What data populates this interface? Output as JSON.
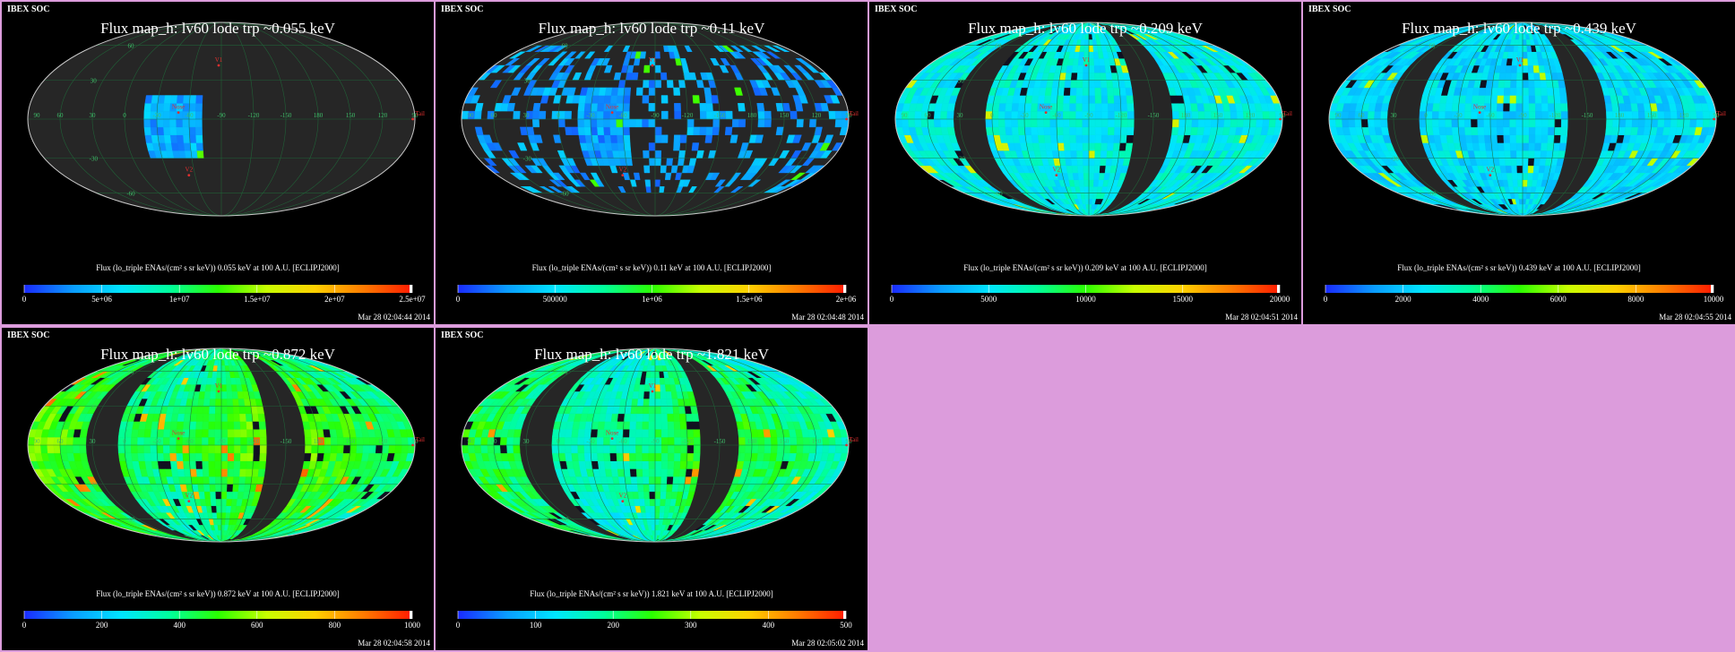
{
  "header_label": "IBEX SOC",
  "map_labels": {
    "lon": [
      "90",
      "60",
      "30",
      "0",
      "-30",
      "-60",
      "-90",
      "-120",
      "-150",
      "180",
      "150",
      "120",
      "90"
    ],
    "lat": [
      "60",
      "30",
      "-30",
      "-60"
    ],
    "voyager1": "V1",
    "voyager2": "V2",
    "nose": "Nose",
    "tail": "Tail"
  },
  "colors": {
    "page_bg": "#dc9cdc",
    "panel_bg": "#000000",
    "map_bg": "#262626",
    "grid": "#1f6b3a",
    "outline": "#c8c8c8",
    "marker": "#e03030",
    "colorbar": [
      "#1a2aff",
      "#0a9cff",
      "#00e4ff",
      "#00ff9c",
      "#2aff00",
      "#c8ff00",
      "#ffd000",
      "#ff7a00",
      "#ff1a00"
    ]
  },
  "chart_data": [
    {
      "type": "heatmap",
      "title": "Flux   map_h: lv60 lode trp ~0.055 keV",
      "energy_keV": 0.055,
      "colorbar_label": "Flux (lo_triple ENAs/(cm² s sr keV))  0.055 keV at 100 A.U. [ECLIPJ2000]",
      "colorbar_ticks": [
        "0",
        "5e+06",
        "1e+07",
        "1.5e+07",
        "2e+07",
        "2.5e+07"
      ],
      "colorbar_range": [
        0,
        25000000
      ],
      "timestamp": "Mar 28 02:04:44 2014",
      "coverage": "central sliver only (lon -70 to -20)"
    },
    {
      "type": "heatmap",
      "title": "Flux   map_h: lv60 lode trp ~0.11 keV",
      "energy_keV": 0.11,
      "colorbar_label": "Flux (lo_triple ENAs/(cm² s sr keV))  0.11 keV at 100 A.U. [ECLIPJ2000]",
      "colorbar_ticks": [
        "0",
        "500000",
        "1e+06",
        "1.5e+06",
        "2e+06"
      ],
      "colorbar_range": [
        0,
        2000000
      ],
      "timestamp": "Mar 28 02:04:48 2014",
      "coverage": "central sliver plus scattered patches"
    },
    {
      "type": "heatmap",
      "title": "Flux   map_h: lv60 lode trp ~0.209 keV",
      "energy_keV": 0.209,
      "colorbar_label": "Flux (lo_triple ENAs/(cm² s sr keV))  0.209 keV at 100 A.U. [ECLIPJ2000]",
      "colorbar_ticks": [
        "0",
        "5000",
        "10000",
        "15000",
        "20000"
      ],
      "colorbar_range": [
        0,
        20000
      ],
      "timestamp": "Mar 28 02:04:51 2014",
      "coverage": "full sky minus two gores"
    },
    {
      "type": "heatmap",
      "title": "Flux   map_h: lv60 lode trp ~0.439 keV",
      "energy_keV": 0.439,
      "colorbar_label": "Flux (lo_triple ENAs/(cm² s sr keV))  0.439 keV at 100 A.U. [ECLIPJ2000]",
      "colorbar_ticks": [
        "0",
        "2000",
        "4000",
        "6000",
        "8000",
        "10000"
      ],
      "colorbar_range": [
        0,
        10000
      ],
      "timestamp": "Mar 28 02:04:55 2014",
      "coverage": "full sky minus two gores"
    },
    {
      "type": "heatmap",
      "title": "Flux   map_h: lv60 lode trp ~0.872 keV",
      "energy_keV": 0.872,
      "colorbar_label": "Flux (lo_triple ENAs/(cm² s sr keV))  0.872 keV at 100 A.U. [ECLIPJ2000]",
      "colorbar_ticks": [
        "0",
        "200",
        "400",
        "600",
        "800",
        "1000"
      ],
      "colorbar_range": [
        0,
        1000
      ],
      "timestamp": "Mar 28 02:04:58 2014",
      "coverage": "full sky minus two gores"
    },
    {
      "type": "heatmap",
      "title": "Flux   map_h: lv60 lode trp ~1.821 keV",
      "energy_keV": 1.821,
      "colorbar_label": "Flux (lo_triple ENAs/(cm² s sr keV))  1.821 keV at 100 A.U. [ECLIPJ2000]",
      "colorbar_ticks": [
        "0",
        "100",
        "200",
        "300",
        "400",
        "500"
      ],
      "colorbar_range": [
        0,
        500
      ],
      "timestamp": "Mar 28 02:05:02 2014",
      "coverage": "full sky minus two gores"
    }
  ]
}
